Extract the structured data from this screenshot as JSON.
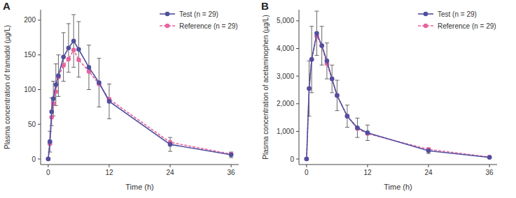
{
  "chart_data": [
    {
      "type": "line",
      "title": "A",
      "x_label": "Time (h)",
      "y_label": "Plasma concentration of tramadol (µg/L)",
      "x": [
        0,
        0.33,
        0.67,
        1,
        1.5,
        2,
        3,
        4,
        5,
        6,
        8,
        10,
        12,
        24,
        36
      ],
      "series": [
        {
          "name": "Test (n = 29)",
          "color": "#4f4f9e",
          "marker": "circle",
          "line_style": "solid",
          "values": [
            0,
            25,
            68,
            87,
            107,
            120,
            147,
            160,
            170,
            158,
            132,
            110,
            83,
            21,
            6
          ],
          "errors": [
            0,
            15,
            20,
            25,
            30,
            30,
            35,
            35,
            38,
            40,
            32,
            35,
            25,
            10,
            4
          ]
        },
        {
          "name": "Reference (n = 29)",
          "color": "#e8649f",
          "marker": "circle",
          "line_style": "dashed",
          "values": [
            0,
            22,
            60,
            80,
            97,
            118,
            135,
            144,
            157,
            143,
            126,
            108,
            86,
            24,
            7
          ]
        }
      ],
      "xlim": [
        -1.5,
        37.5
      ],
      "ylim": [
        -8,
        215
      ],
      "xticks": [
        0,
        12,
        24,
        36
      ],
      "yticks": [
        0,
        50,
        100,
        150,
        200
      ],
      "legend": "upper right"
    },
    {
      "type": "line",
      "title": "B",
      "x_label": "Time (h)",
      "y_label": "Plasma concentration of acetaminophen (µg/L)",
      "x": [
        0,
        0.5,
        1,
        2,
        3,
        4,
        5,
        6,
        8,
        10,
        12,
        24,
        36
      ],
      "series": [
        {
          "name": "Test (n = 29)",
          "color": "#4f4f9e",
          "marker": "circle",
          "line_style": "solid",
          "values": [
            0,
            2550,
            3600,
            4550,
            4100,
            3550,
            2900,
            2300,
            1550,
            1130,
            950,
            300,
            60
          ],
          "errors": [
            0,
            1000,
            1200,
            800,
            700,
            650,
            500,
            550,
            400,
            350,
            280,
            100,
            30
          ]
        },
        {
          "name": "Reference (n = 29)",
          "color": "#e8649f",
          "marker": "circle",
          "line_style": "dashed",
          "values": [
            0,
            2550,
            3600,
            4450,
            4100,
            3450,
            2900,
            2300,
            1550,
            1100,
            920,
            350,
            70
          ]
        }
      ],
      "xlim": [
        -1.5,
        37.5
      ],
      "ylim": [
        -200,
        5400
      ],
      "xticks": [
        0,
        12,
        24,
        36
      ],
      "yticks": [
        0,
        {
          "value": 1000,
          "label": "1,000"
        },
        {
          "value": 2000,
          "label": "2,000"
        },
        {
          "value": 3000,
          "label": "3,000"
        },
        {
          "value": 4000,
          "label": "4,000"
        },
        {
          "value": 5000,
          "label": "5,000"
        }
      ],
      "legend": "upper right"
    }
  ]
}
